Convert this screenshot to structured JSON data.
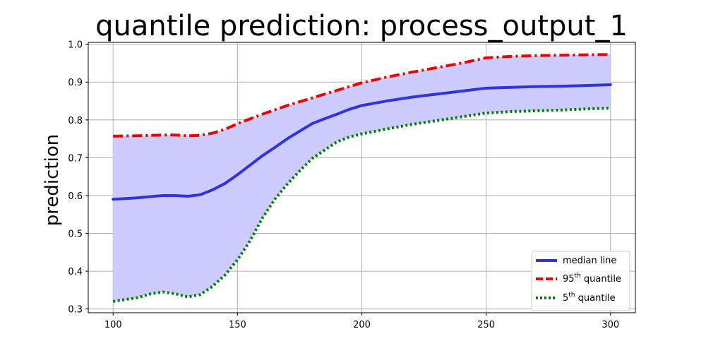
{
  "chart_data": {
    "type": "line",
    "title": "quantile prediction: process_output_1",
    "xlabel": "",
    "ylabel": "prediction",
    "xlim": [
      90,
      310
    ],
    "ylim": [
      0.29,
      1.005
    ],
    "xticks": [
      100,
      150,
      200,
      250,
      300
    ],
    "xtick_labels": [
      "100",
      "150",
      "200",
      "250",
      "300"
    ],
    "yticks": [
      0.3,
      0.4,
      0.5,
      0.6,
      0.7,
      0.8,
      0.9,
      1.0
    ],
    "ytick_labels": [
      "0.3",
      "0.4",
      "0.5",
      "0.6",
      "0.7",
      "0.8",
      "0.9",
      "1.0"
    ],
    "grid": true,
    "legend_position": "lower-right",
    "fill_between": {
      "upper": "95th quantile",
      "lower": "5th quantile",
      "color": "#ccccff"
    },
    "series": [
      {
        "name": "median line",
        "legend_text": "median line",
        "color": "#3333dd",
        "style": "solid",
        "x": [
          100,
          105,
          110,
          115,
          120,
          125,
          130,
          135,
          140,
          145,
          150,
          155,
          160,
          165,
          170,
          175,
          180,
          185,
          190,
          195,
          200,
          210,
          220,
          230,
          240,
          250,
          260,
          270,
          280,
          290,
          300
        ],
        "y": [
          0.59,
          0.592,
          0.594,
          0.597,
          0.6,
          0.6,
          0.598,
          0.602,
          0.615,
          0.632,
          0.655,
          0.68,
          0.705,
          0.727,
          0.75,
          0.77,
          0.79,
          0.803,
          0.815,
          0.828,
          0.838,
          0.85,
          0.86,
          0.868,
          0.876,
          0.884,
          0.886,
          0.888,
          0.889,
          0.891,
          0.893
        ]
      },
      {
        "name": "95th quantile",
        "legend_main": "95",
        "legend_sup": "th",
        "legend_rest": " quantile",
        "color": "#ee0000",
        "style": "dashdot",
        "x": [
          100,
          110,
          120,
          125,
          130,
          135,
          140,
          145,
          150,
          160,
          170,
          180,
          190,
          200,
          210,
          220,
          230,
          240,
          250,
          260,
          270,
          280,
          290,
          300
        ],
        "y": [
          0.757,
          0.758,
          0.76,
          0.76,
          0.758,
          0.759,
          0.765,
          0.775,
          0.79,
          0.815,
          0.838,
          0.858,
          0.878,
          0.898,
          0.913,
          0.926,
          0.938,
          0.95,
          0.964,
          0.968,
          0.97,
          0.971,
          0.972,
          0.973
        ]
      },
      {
        "name": "5th quantile",
        "legend_main": "5",
        "legend_sup": "th",
        "legend_rest": " quantile",
        "color": "#008000",
        "style": "dotted",
        "x": [
          100,
          105,
          110,
          115,
          120,
          125,
          130,
          135,
          140,
          145,
          150,
          155,
          160,
          165,
          170,
          175,
          180,
          185,
          190,
          195,
          200,
          210,
          220,
          230,
          240,
          250,
          260,
          270,
          280,
          290,
          300
        ],
        "y": [
          0.32,
          0.325,
          0.33,
          0.34,
          0.345,
          0.34,
          0.332,
          0.338,
          0.36,
          0.39,
          0.43,
          0.48,
          0.54,
          0.59,
          0.63,
          0.665,
          0.698,
          0.72,
          0.742,
          0.755,
          0.763,
          0.776,
          0.788,
          0.798,
          0.808,
          0.818,
          0.822,
          0.824,
          0.826,
          0.829,
          0.831
        ]
      }
    ]
  }
}
